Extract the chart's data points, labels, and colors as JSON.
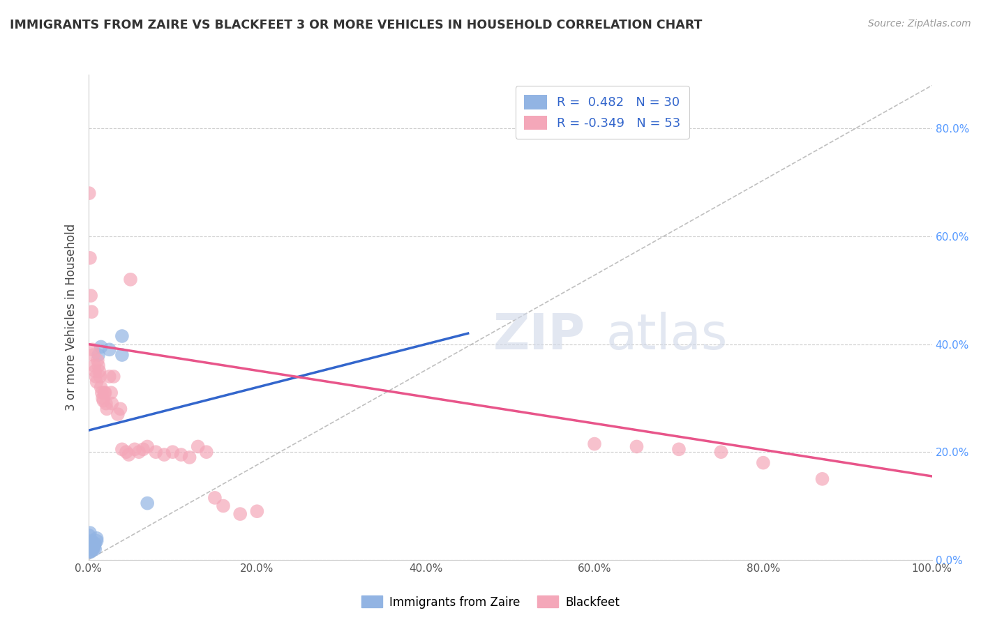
{
  "title": "IMMIGRANTS FROM ZAIRE VS BLACKFEET 3 OR MORE VEHICLES IN HOUSEHOLD CORRELATION CHART",
  "source": "Source: ZipAtlas.com",
  "ylabel": "3 or more Vehicles in Household",
  "legend_labels": [
    "Immigrants from Zaire",
    "Blackfeet"
  ],
  "r_blue": 0.482,
  "n_blue": 30,
  "r_pink": -0.349,
  "n_pink": 53,
  "blue_color": "#92b4e3",
  "pink_color": "#f4a7b9",
  "blue_line_color": "#3366cc",
  "pink_line_color": "#e8558a",
  "background_color": "#ffffff",
  "blue_scatter": [
    [
      0.0,
      0.02
    ],
    [
      0.001,
      0.025
    ],
    [
      0.001,
      0.015
    ],
    [
      0.001,
      0.03
    ],
    [
      0.001,
      0.045
    ],
    [
      0.002,
      0.02
    ],
    [
      0.002,
      0.025
    ],
    [
      0.002,
      0.03
    ],
    [
      0.002,
      0.015
    ],
    [
      0.002,
      0.05
    ],
    [
      0.003,
      0.02
    ],
    [
      0.003,
      0.025
    ],
    [
      0.003,
      0.015
    ],
    [
      0.004,
      0.02
    ],
    [
      0.004,
      0.035
    ],
    [
      0.005,
      0.025
    ],
    [
      0.005,
      0.02
    ],
    [
      0.006,
      0.03
    ],
    [
      0.006,
      0.02
    ],
    [
      0.007,
      0.025
    ],
    [
      0.008,
      0.03
    ],
    [
      0.008,
      0.02
    ],
    [
      0.01,
      0.035
    ],
    [
      0.01,
      0.04
    ],
    [
      0.012,
      0.38
    ],
    [
      0.015,
      0.395
    ],
    [
      0.025,
      0.39
    ],
    [
      0.04,
      0.415
    ],
    [
      0.04,
      0.38
    ],
    [
      0.07,
      0.105
    ]
  ],
  "pink_scatter": [
    [
      0.001,
      0.68
    ],
    [
      0.002,
      0.56
    ],
    [
      0.003,
      0.49
    ],
    [
      0.004,
      0.46
    ],
    [
      0.005,
      0.39
    ],
    [
      0.006,
      0.38
    ],
    [
      0.007,
      0.36
    ],
    [
      0.008,
      0.35
    ],
    [
      0.009,
      0.34
    ],
    [
      0.01,
      0.33
    ],
    [
      0.011,
      0.37
    ],
    [
      0.012,
      0.36
    ],
    [
      0.013,
      0.35
    ],
    [
      0.014,
      0.34
    ],
    [
      0.015,
      0.32
    ],
    [
      0.016,
      0.31
    ],
    [
      0.017,
      0.3
    ],
    [
      0.018,
      0.295
    ],
    [
      0.019,
      0.31
    ],
    [
      0.02,
      0.31
    ],
    [
      0.021,
      0.29
    ],
    [
      0.022,
      0.28
    ],
    [
      0.025,
      0.34
    ],
    [
      0.027,
      0.31
    ],
    [
      0.028,
      0.29
    ],
    [
      0.03,
      0.34
    ],
    [
      0.035,
      0.27
    ],
    [
      0.038,
      0.28
    ],
    [
      0.04,
      0.205
    ],
    [
      0.045,
      0.2
    ],
    [
      0.048,
      0.195
    ],
    [
      0.05,
      0.52
    ],
    [
      0.055,
      0.205
    ],
    [
      0.06,
      0.2
    ],
    [
      0.065,
      0.205
    ],
    [
      0.07,
      0.21
    ],
    [
      0.08,
      0.2
    ],
    [
      0.09,
      0.195
    ],
    [
      0.1,
      0.2
    ],
    [
      0.11,
      0.195
    ],
    [
      0.12,
      0.19
    ],
    [
      0.13,
      0.21
    ],
    [
      0.14,
      0.2
    ],
    [
      0.15,
      0.115
    ],
    [
      0.16,
      0.1
    ],
    [
      0.18,
      0.085
    ],
    [
      0.2,
      0.09
    ],
    [
      0.6,
      0.215
    ],
    [
      0.65,
      0.21
    ],
    [
      0.7,
      0.205
    ],
    [
      0.75,
      0.2
    ],
    [
      0.8,
      0.18
    ],
    [
      0.87,
      0.15
    ]
  ],
  "xlim": [
    0.0,
    1.0
  ],
  "ylim": [
    0.0,
    0.9
  ],
  "ytick_vals": [
    0.0,
    0.2,
    0.4,
    0.6,
    0.8
  ],
  "ytick_labels": [
    "0.0%",
    "20.0%",
    "40.0%",
    "60.0%",
    "80.0%"
  ],
  "xtick_vals": [
    0.0,
    0.2,
    0.4,
    0.6,
    0.8,
    1.0
  ],
  "xtick_labels": [
    "0.0%",
    "20.0%",
    "40.0%",
    "60.0%",
    "80.0%",
    "100.0%"
  ],
  "blue_line": [
    [
      0.0,
      0.24
    ],
    [
      0.45,
      0.42
    ]
  ],
  "pink_line": [
    [
      0.0,
      0.4
    ],
    [
      1.0,
      0.155
    ]
  ]
}
